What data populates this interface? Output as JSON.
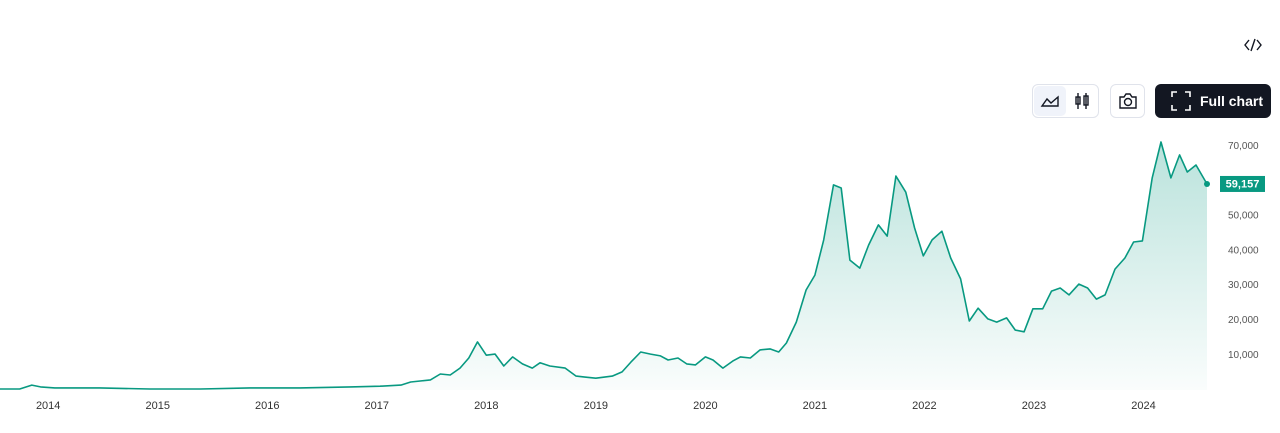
{
  "chart_data": {
    "type": "line",
    "color": "#089981",
    "x": [
      2013.56,
      2013.74,
      2013.85,
      2013.93,
      2014.06,
      2014.29,
      2014.47,
      2014.93,
      2015.39,
      2015.84,
      2016.3,
      2016.76,
      2017.03,
      2017.22,
      2017.31,
      2017.49,
      2017.58,
      2017.67,
      2017.76,
      2017.84,
      2017.92,
      2018.0,
      2018.08,
      2018.16,
      2018.24,
      2018.33,
      2018.42,
      2018.49,
      2018.58,
      2018.72,
      2018.82,
      2018.9,
      2019.0,
      2019.15,
      2019.24,
      2019.32,
      2019.41,
      2019.5,
      2019.59,
      2019.66,
      2019.75,
      2019.83,
      2019.91,
      2020.0,
      2020.07,
      2020.16,
      2020.25,
      2020.32,
      2020.41,
      2020.5,
      2020.59,
      2020.67,
      2020.74,
      2020.83,
      2020.92,
      2021.0,
      2021.08,
      2021.17,
      2021.24,
      2021.32,
      2021.41,
      2021.49,
      2021.58,
      2021.66,
      2021.74,
      2021.83,
      2021.91,
      2021.99,
      2022.07,
      2022.16,
      2022.24,
      2022.33,
      2022.41,
      2022.49,
      2022.58,
      2022.66,
      2022.75,
      2022.83,
      2022.91,
      2022.99,
      2023.08,
      2023.16,
      2023.24,
      2023.32,
      2023.41,
      2023.49,
      2023.57,
      2023.65,
      2023.74,
      2023.83,
      2023.91,
      2023.99,
      2024.08,
      2024.16,
      2024.25,
      2024.33,
      2024.4,
      2024.48,
      2024.58
    ],
    "values": [
      300,
      300,
      1400,
      900,
      600,
      600,
      600,
      300,
      300,
      600,
      600,
      900,
      1100,
      1400,
      2300,
      2900,
      4600,
      4300,
      6300,
      9200,
      13800,
      10000,
      10300,
      6900,
      9500,
      7500,
      6300,
      7800,
      6900,
      6300,
      4000,
      3700,
      3400,
      4000,
      5200,
      8000,
      10900,
      10300,
      9800,
      8600,
      9200,
      7500,
      7200,
      9500,
      8600,
      6300,
      8300,
      9500,
      9200,
      11500,
      11800,
      10900,
      13500,
      19500,
      28700,
      33000,
      43100,
      58900,
      58000,
      37300,
      35000,
      41600,
      47400,
      44200,
      61400,
      56800,
      46500,
      38500,
      43100,
      45600,
      37900,
      31900,
      19800,
      23500,
      20400,
      19500,
      20700,
      17200,
      16700,
      23300,
      23300,
      28400,
      29300,
      27300,
      30400,
      29300,
      26100,
      27300,
      34700,
      37900,
      42500,
      42800,
      60900,
      71200,
      60900,
      67500,
      62600,
      64600,
      59157
    ],
    "price_tag": {
      "value": 59157,
      "label": "59,157"
    },
    "xlim": [
      2013.56,
      2024.58
    ],
    "xticks": [
      2014,
      2015,
      2016,
      2017,
      2018,
      2019,
      2020,
      2021,
      2022,
      2023,
      2024
    ],
    "ylim": [
      0,
      74650
    ],
    "yticks": [
      {
        "value": 10000,
        "label": "10,000"
      },
      {
        "value": 20000,
        "label": "20,000"
      },
      {
        "value": 30000,
        "label": "30,000"
      },
      {
        "value": 40000,
        "label": "40,000"
      },
      {
        "value": 50000,
        "label": "50,000"
      },
      {
        "value": 60000,
        "label": "60,000"
      },
      {
        "value": 70000,
        "label": "70,000"
      }
    ]
  },
  "toolbar": {
    "full_chart": "Full chart"
  }
}
